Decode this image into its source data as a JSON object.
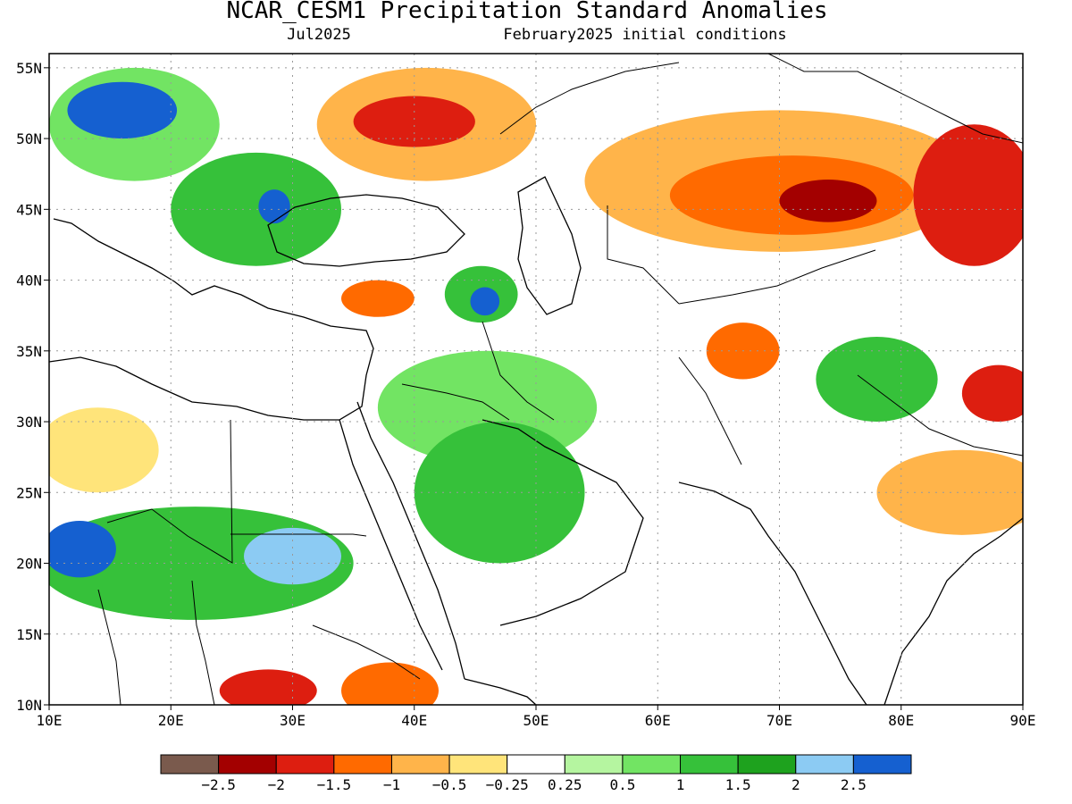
{
  "title": "NCAR_CESM1 Precipitation Standard Anomalies",
  "valid_month": "Jul2025",
  "init_label": "February2025 initial conditions",
  "lat_labels": [
    "55N",
    "50N",
    "45N",
    "40N",
    "35N",
    "30N",
    "25N",
    "20N",
    "15N",
    "10N"
  ],
  "lon_labels": [
    "10E",
    "20E",
    "30E",
    "40E",
    "50E",
    "60E",
    "70E",
    "80E",
    "90E"
  ],
  "legend": {
    "colors": [
      "#7a5a4d",
      "#a30000",
      "#dd1e10",
      "#ff6a00",
      "#ffb44a",
      "#ffe47a",
      "#ffffff",
      "#b5f5a0",
      "#72e463",
      "#36c13a",
      "#1ea21e",
      "#8ccbf3",
      "#1560d0"
    ],
    "labels": [
      "−2.5",
      "−2",
      "−1.5",
      "−1",
      "−0.5",
      "−0.25",
      "0.25",
      "0.5",
      "1",
      "1.5",
      "2",
      "2.5"
    ]
  },
  "map_extent": {
    "lon": [
      10,
      90
    ],
    "lat": [
      10,
      56
    ]
  },
  "anomaly_regions": [
    {
      "name": "europe-wet",
      "lon": 17,
      "lat": 51,
      "rx": 7,
      "ry": 4,
      "color": "#72e463"
    },
    {
      "name": "europe-wet-core",
      "lon": 16,
      "lat": 52,
      "rx": 4.5,
      "ry": 2,
      "color": "#1560d0"
    },
    {
      "name": "balkans-wet",
      "lon": 27,
      "lat": 45,
      "rx": 7,
      "ry": 4,
      "color": "#36c13a"
    },
    {
      "name": "balkans-core",
      "lon": 28.5,
      "lat": 45.2,
      "rx": 1.3,
      "ry": 1.2,
      "color": "#1560d0"
    },
    {
      "name": "russia-dry",
      "lon": 41,
      "lat": 51,
      "rx": 9,
      "ry": 4,
      "color": "#ffb44a"
    },
    {
      "name": "russia-dry-core",
      "lon": 40,
      "lat": 51.2,
      "rx": 5,
      "ry": 1.8,
      "color": "#dd1e10"
    },
    {
      "name": "turkey-dry",
      "lon": 37,
      "lat": 38.7,
      "rx": 3,
      "ry": 1.3,
      "color": "#ff6a00"
    },
    {
      "name": "caucasus-wet",
      "lon": 45.5,
      "lat": 39,
      "rx": 3,
      "ry": 2,
      "color": "#36c13a"
    },
    {
      "name": "caucasus-core",
      "lon": 45.8,
      "lat": 38.5,
      "rx": 1.2,
      "ry": 1,
      "color": "#1560d0"
    },
    {
      "name": "kazakhstan-dry",
      "lon": 70,
      "lat": 47,
      "rx": 16,
      "ry": 5,
      "color": "#ffb44a"
    },
    {
      "name": "kazakhstan-dry-mid",
      "lon": 71,
      "lat": 46,
      "rx": 10,
      "ry": 2.8,
      "color": "#ff6a00"
    },
    {
      "name": "kazakhstan-dry-core",
      "lon": 74,
      "lat": 45.6,
      "rx": 4,
      "ry": 1.5,
      "color": "#a30000"
    },
    {
      "name": "mongolia-dry",
      "lon": 86,
      "lat": 46,
      "rx": 5,
      "ry": 5,
      "color": "#dd1e10"
    },
    {
      "name": "iraq-wet",
      "lon": 46,
      "lat": 31,
      "rx": 9,
      "ry": 4,
      "color": "#72e463"
    },
    {
      "name": "arabia-wet",
      "lon": 47,
      "lat": 25,
      "rx": 7,
      "ry": 5,
      "color": "#36c13a"
    },
    {
      "name": "sahel-wet",
      "lon": 22,
      "lat": 20,
      "rx": 13,
      "ry": 4,
      "color": "#36c13a"
    },
    {
      "name": "sahel-west-core",
      "lon": 12.5,
      "lat": 21,
      "rx": 3,
      "ry": 2,
      "color": "#1560d0"
    },
    {
      "name": "sudan-wet",
      "lon": 30,
      "lat": 20.5,
      "rx": 4,
      "ry": 2,
      "color": "#8ccbf3"
    },
    {
      "name": "libya-dry",
      "lon": 14,
      "lat": 28,
      "rx": 5,
      "ry": 3,
      "color": "#ffe47a"
    },
    {
      "name": "afghanistan-dry",
      "lon": 67,
      "lat": 35,
      "rx": 3,
      "ry": 2,
      "color": "#ff6a00"
    },
    {
      "name": "india-wet",
      "lon": 78,
      "lat": 33,
      "rx": 5,
      "ry": 3,
      "color": "#36c13a"
    },
    {
      "name": "india-dry",
      "lon": 85,
      "lat": 25,
      "rx": 7,
      "ry": 3,
      "color": "#ffb44a"
    },
    {
      "name": "tibet-dry",
      "lon": 88,
      "lat": 32,
      "rx": 3,
      "ry": 2,
      "color": "#dd1e10"
    },
    {
      "name": "ethiopia-dry",
      "lon": 38,
      "lat": 11,
      "rx": 4,
      "ry": 2,
      "color": "#ff6a00"
    },
    {
      "name": "chad-dry",
      "lon": 28,
      "lat": 11,
      "rx": 4,
      "ry": 1.5,
      "color": "#dd1e10"
    }
  ]
}
